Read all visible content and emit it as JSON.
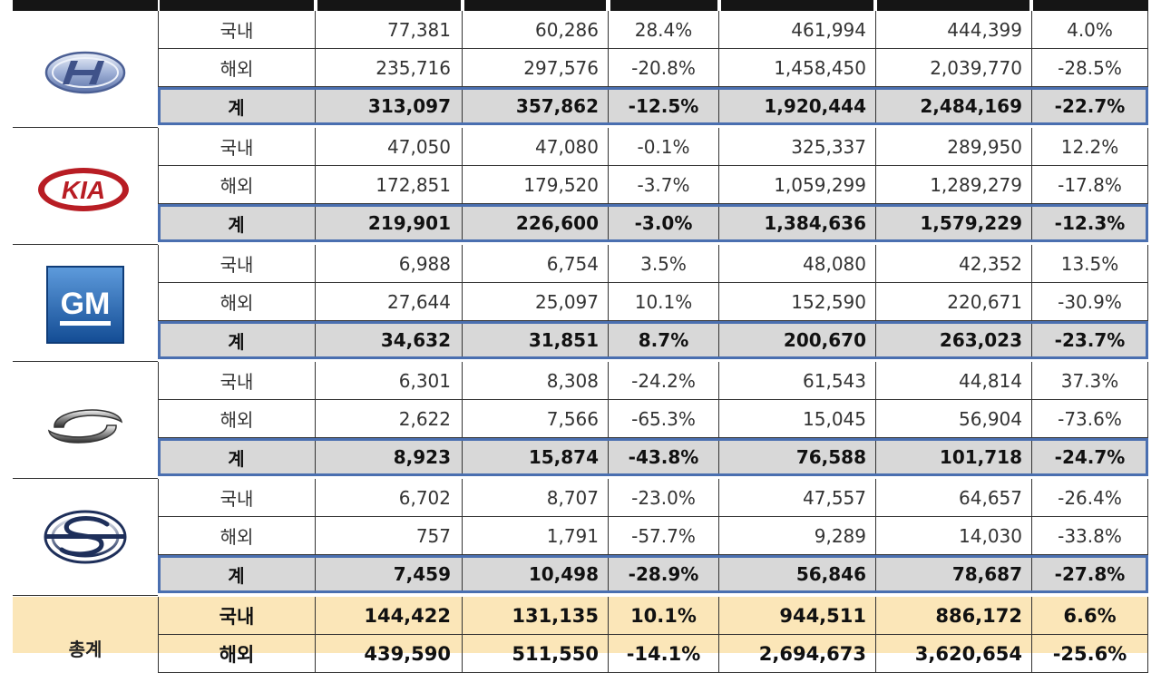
{
  "brands": [
    {
      "name": "hyundai",
      "logo_icon": "hyundai-logo",
      "rows": [
        {
          "label": "국내",
          "v1": "77,381",
          "v2": "60,286",
          "r1": "28.4%",
          "v3": "461,994",
          "v4": "444,399",
          "r2": "4.0%"
        },
        {
          "label": "해외",
          "v1": "235,716",
          "v2": "297,576",
          "r1": "-20.8%",
          "v3": "1,458,450",
          "v4": "2,039,770",
          "r2": "-28.5%"
        }
      ],
      "total": {
        "label": "계",
        "v1": "313,097",
        "v2": "357,862",
        "r1": "-12.5%",
        "v3": "1,920,444",
        "v4": "2,484,169",
        "r2": "-22.7%"
      }
    },
    {
      "name": "kia",
      "logo_icon": "kia-logo",
      "logo_text": "KIA",
      "rows": [
        {
          "label": "국내",
          "v1": "47,050",
          "v2": "47,080",
          "r1": "-0.1%",
          "v3": "325,337",
          "v4": "289,950",
          "r2": "12.2%"
        },
        {
          "label": "해외",
          "v1": "172,851",
          "v2": "179,520",
          "r1": "-3.7%",
          "v3": "1,059,299",
          "v4": "1,289,279",
          "r2": "-17.8%"
        }
      ],
      "total": {
        "label": "계",
        "v1": "219,901",
        "v2": "226,600",
        "r1": "-3.0%",
        "v3": "1,384,636",
        "v4": "1,579,229",
        "r2": "-12.3%"
      }
    },
    {
      "name": "gm",
      "logo_icon": "gm-logo",
      "logo_text": "GM",
      "rows": [
        {
          "label": "국내",
          "v1": "6,988",
          "v2": "6,754",
          "r1": "3.5%",
          "v3": "48,080",
          "v4": "42,352",
          "r2": "13.5%"
        },
        {
          "label": "해외",
          "v1": "27,644",
          "v2": "25,097",
          "r1": "10.1%",
          "v3": "152,590",
          "v4": "220,671",
          "r2": "-30.9%"
        }
      ],
      "total": {
        "label": "계",
        "v1": "34,632",
        "v2": "31,851",
        "r1": "8.7%",
        "v3": "200,670",
        "v4": "263,023",
        "r2": "-23.7%"
      }
    },
    {
      "name": "renault-samsung",
      "logo_icon": "renault-samsung-logo",
      "rows": [
        {
          "label": "국내",
          "v1": "6,301",
          "v2": "8,308",
          "r1": "-24.2%",
          "v3": "61,543",
          "v4": "44,814",
          "r2": "37.3%"
        },
        {
          "label": "해외",
          "v1": "2,622",
          "v2": "7,566",
          "r1": "-65.3%",
          "v3": "15,045",
          "v4": "56,904",
          "r2": "-73.6%"
        }
      ],
      "total": {
        "label": "계",
        "v1": "8,923",
        "v2": "15,874",
        "r1": "-43.8%",
        "v3": "76,588",
        "v4": "101,718",
        "r2": "-24.7%"
      }
    },
    {
      "name": "ssangyong",
      "logo_icon": "ssangyong-logo",
      "rows": [
        {
          "label": "국내",
          "v1": "6,702",
          "v2": "8,707",
          "r1": "-23.0%",
          "v3": "47,557",
          "v4": "64,657",
          "r2": "-26.4%"
        },
        {
          "label": "해외",
          "v1": "757",
          "v2": "1,791",
          "r1": "-57.7%",
          "v3": "9,289",
          "v4": "14,030",
          "r2": "-33.8%"
        }
      ],
      "total": {
        "label": "계",
        "v1": "7,459",
        "v2": "10,498",
        "r1": "-28.9%",
        "v3": "56,846",
        "v4": "78,687",
        "r2": "-27.8%"
      }
    }
  ],
  "grand_total": {
    "label": "총계",
    "rows": [
      {
        "label": "국내",
        "v1": "144,422",
        "v2": "131,135",
        "r1": "10.1%",
        "v3": "944,511",
        "v4": "886,172",
        "r2": "6.6%"
      },
      {
        "label": "해외",
        "v1": "439,590",
        "v2": "511,550",
        "r1": "-14.1%",
        "v3": "2,694,673",
        "v4": "3,620,654",
        "r2": "-25.6%"
      }
    ]
  },
  "colors": {
    "sum_row_bg": "#d8d8d8",
    "sum_row_outline": "#4a6fb0",
    "grand_total_bg": "#fbe6b8",
    "header_bar": "#151515",
    "kia_red": "#b81d24",
    "gm_blue": "#1f5fa8"
  }
}
